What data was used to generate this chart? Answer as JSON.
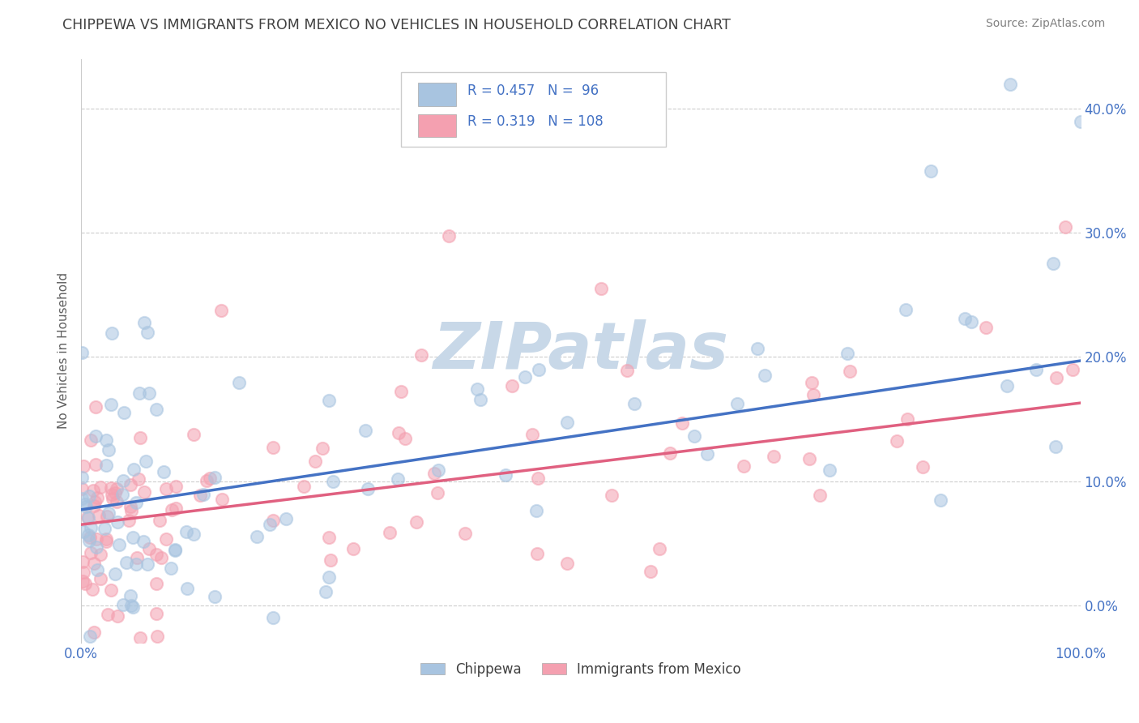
{
  "title": "CHIPPEWA VS IMMIGRANTS FROM MEXICO NO VEHICLES IN HOUSEHOLD CORRELATION CHART",
  "source": "Source: ZipAtlas.com",
  "ylabel": "No Vehicles in Household",
  "xlabel": "",
  "xlim": [
    0.0,
    1.0
  ],
  "ylim": [
    -0.03,
    0.44
  ],
  "yticks": [
    0.0,
    0.1,
    0.2,
    0.3,
    0.4
  ],
  "ytick_labels": [
    "0.0%",
    "10.0%",
    "20.0%",
    "30.0%",
    "40.0%"
  ],
  "xticks": [
    0.0,
    1.0
  ],
  "xtick_labels": [
    "0.0%",
    "100.0%"
  ],
  "legend_labels": [
    "Chippewa",
    "Immigrants from Mexico"
  ],
  "chippewa_R": 0.457,
  "chippewa_N": 96,
  "mexico_R": 0.319,
  "mexico_N": 108,
  "blue_color": "#a8c4e0",
  "pink_color": "#f4a0b0",
  "blue_line_color": "#4472c4",
  "pink_line_color": "#e06080",
  "title_color": "#404040",
  "source_color": "#808080",
  "stat_color": "#4472c4",
  "watermark": "ZIPatlas",
  "watermark_color": "#c8d8e8",
  "grid_color": "#cccccc",
  "grid_linestyle": "--",
  "background_color": "#ffffff",
  "chip_line_start_y": 0.077,
  "chip_line_end_y": 0.197,
  "mex_line_start_y": 0.065,
  "mex_line_end_y": 0.163
}
